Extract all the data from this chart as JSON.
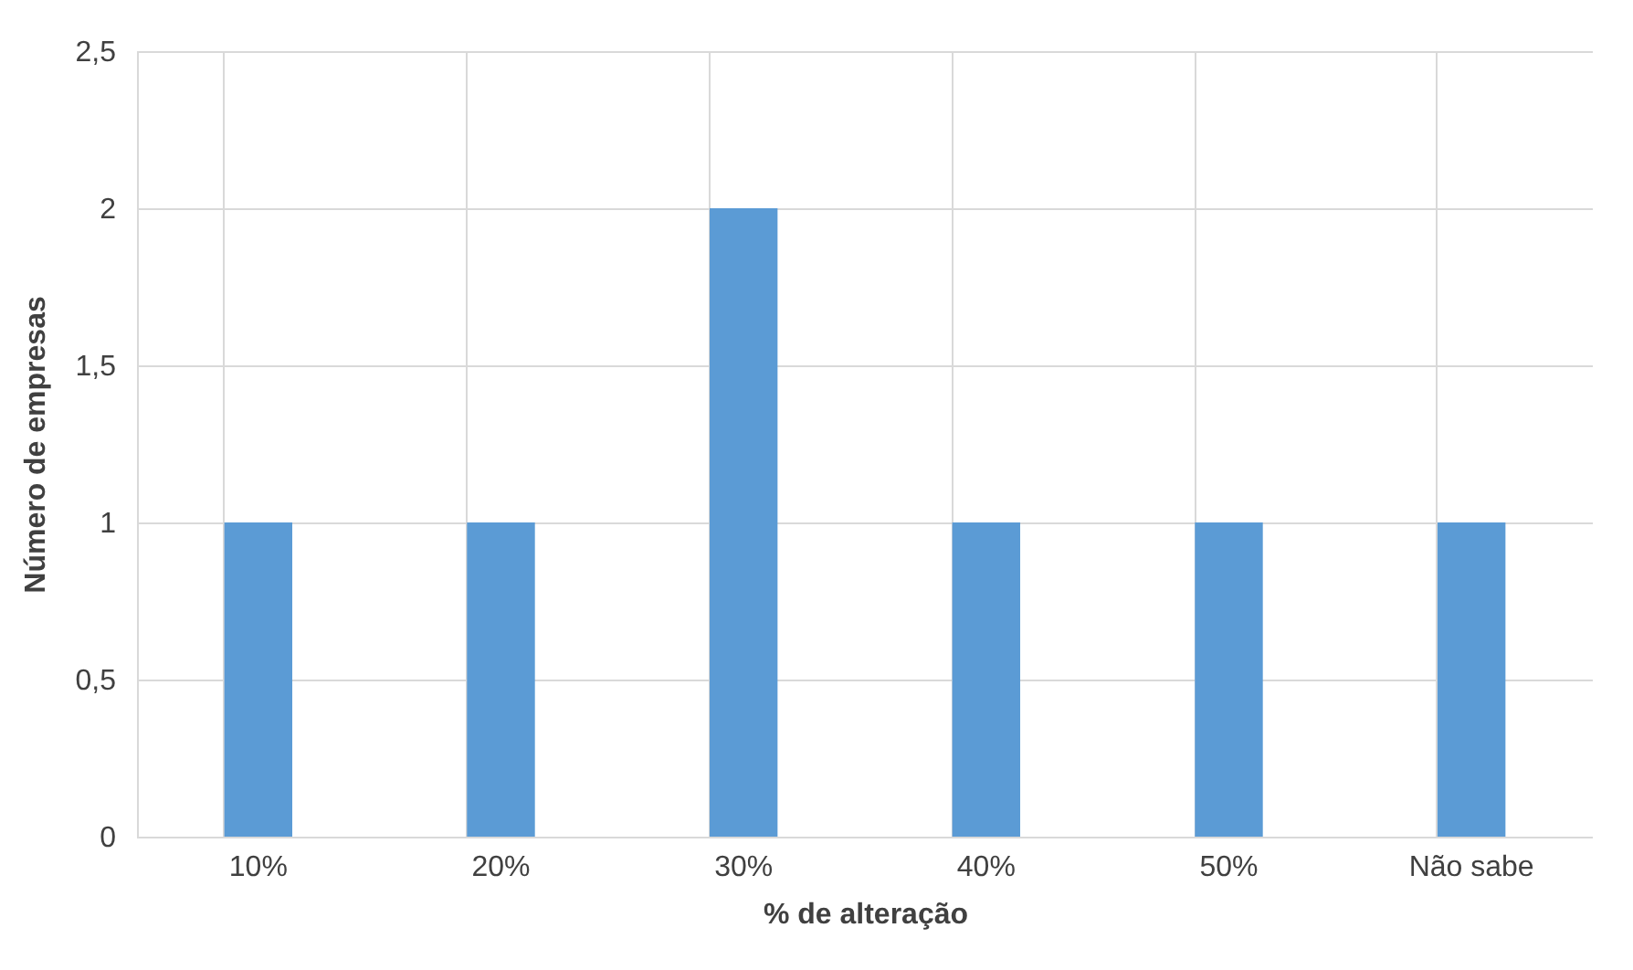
{
  "chart_data": {
    "type": "bar",
    "xlabel": "% de alteração",
    "ylabel": "Número de empresas",
    "categories": [
      "10%",
      "20%",
      "30%",
      "40%",
      "50%",
      "Não sabe"
    ],
    "values": [
      1,
      1,
      2,
      1,
      1,
      1
    ],
    "color": "#5b9bd5",
    "ylim": [
      0,
      2.5
    ],
    "yticks": [
      0,
      {
        "value": 0.5,
        "label": "0,5"
      },
      1,
      {
        "value": 1.5,
        "label": "1,5"
      },
      2,
      {
        "value": 2.5,
        "label": "2,5"
      }
    ],
    "grid": true
  }
}
